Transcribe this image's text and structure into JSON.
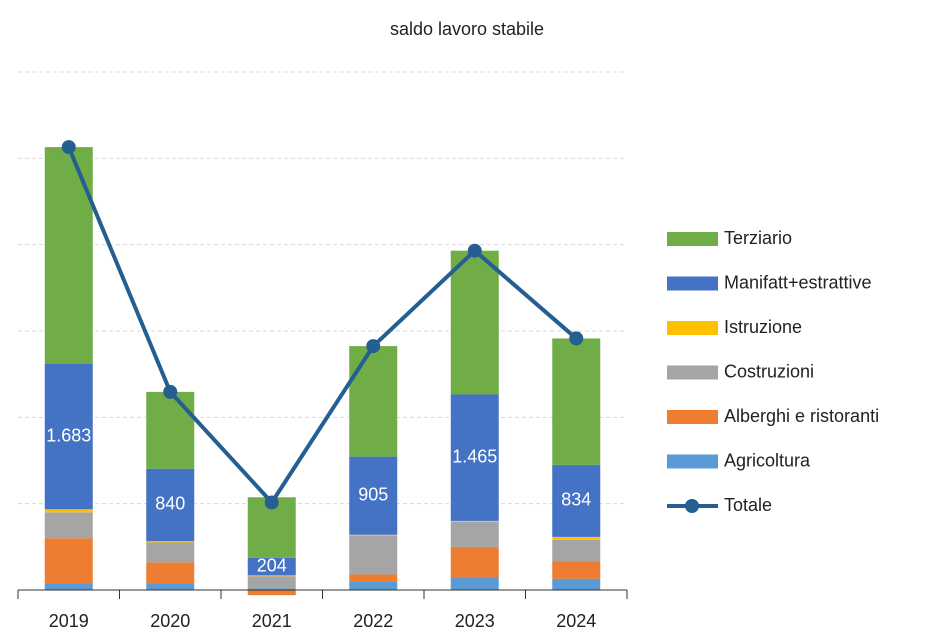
{
  "chart_data": {
    "type": "stacked_bar_line",
    "title": "saldo lavoro stabile",
    "categories": [
      "2019",
      "2020",
      "2021",
      "2022",
      "2023",
      "2024"
    ],
    "series": [
      {
        "name": "Agricoltura",
        "color": "#5b9bd5",
        "values": [
          70,
          80,
          20,
          100,
          150,
          130
        ]
      },
      {
        "name": "Alberghi e ristoranti",
        "color": "#ed7d31",
        "values": [
          530,
          240,
          -60,
          80,
          350,
          200
        ]
      },
      {
        "name": "Costruzioni",
        "color": "#a5a5a5",
        "values": [
          300,
          230,
          140,
          450,
          290,
          250
        ]
      },
      {
        "name": "Istruzione",
        "color": "#ffc000",
        "values": [
          35,
          15,
          10,
          10,
          10,
          35
        ]
      },
      {
        "name": "Manifatt+estrattive",
        "color": "#4472c4",
        "values": [
          1683,
          840,
          204,
          905,
          1465,
          834
        ],
        "value_labels": [
          "1.683",
          "840",
          "204",
          "905",
          "1.465",
          "834"
        ]
      },
      {
        "name": "Terziario",
        "color": "#70ad47",
        "values": [
          2512,
          890,
          700,
          1280,
          1665,
          1465
        ]
      },
      {
        "name": "Totale",
        "color": "#255e91",
        "type": "line",
        "values": [
          5130,
          2295,
          1014,
          2825,
          3930,
          2914
        ]
      }
    ],
    "ylim": [
      0,
      6000
    ],
    "yticks": [
      1000,
      2000,
      3000,
      4000,
      5000,
      6000
    ],
    "grid": true,
    "legend": "right"
  }
}
